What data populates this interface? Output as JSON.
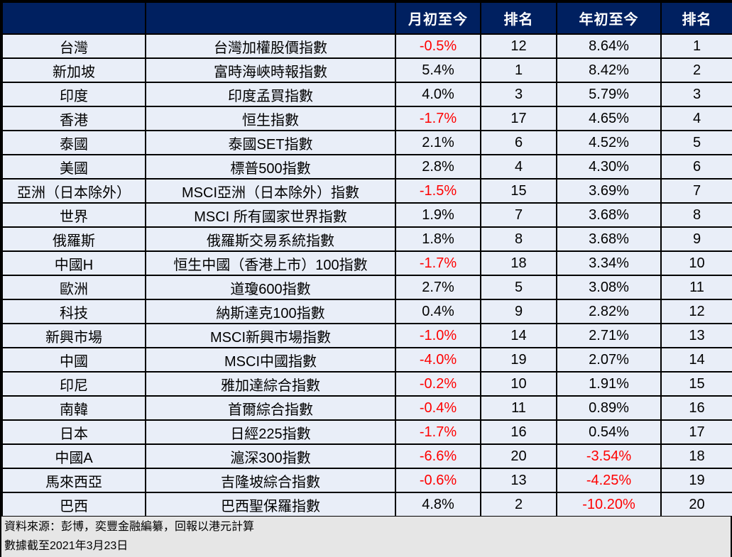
{
  "table": {
    "headers": [
      "",
      "",
      "月初至今",
      "排名",
      "年初至今",
      "排名"
    ],
    "rows": [
      {
        "market": "台灣",
        "index": "台灣加權股價指數",
        "mtd": "-0.5%",
        "mtd_rank": "12",
        "ytd": "8.64%",
        "ytd_rank": "1"
      },
      {
        "market": "新加坡",
        "index": "富時海峽時報指數",
        "mtd": "5.4%",
        "mtd_rank": "1",
        "ytd": "8.42%",
        "ytd_rank": "2"
      },
      {
        "market": "印度",
        "index": "印度孟買指數",
        "mtd": "4.0%",
        "mtd_rank": "3",
        "ytd": "5.79%",
        "ytd_rank": "3"
      },
      {
        "market": "香港",
        "index": "恒生指數",
        "mtd": "-1.7%",
        "mtd_rank": "17",
        "ytd": "4.65%",
        "ytd_rank": "4"
      },
      {
        "market": "泰國",
        "index": "泰國SET指數",
        "mtd": "2.1%",
        "mtd_rank": "6",
        "ytd": "4.52%",
        "ytd_rank": "5"
      },
      {
        "market": "美國",
        "index": "標普500指數",
        "mtd": "2.8%",
        "mtd_rank": "4",
        "ytd": "4.30%",
        "ytd_rank": "6"
      },
      {
        "market": "亞洲（日本除外）",
        "index": "MSCI亞洲（日本除外）指數",
        "mtd": "-1.5%",
        "mtd_rank": "15",
        "ytd": "3.69%",
        "ytd_rank": "7"
      },
      {
        "market": "世界",
        "index": "MSCI 所有國家世界指數",
        "mtd": "1.9%",
        "mtd_rank": "7",
        "ytd": "3.68%",
        "ytd_rank": "8"
      },
      {
        "market": "俄羅斯",
        "index": "俄羅斯交易系統指數",
        "mtd": "1.8%",
        "mtd_rank": "8",
        "ytd": "3.68%",
        "ytd_rank": "9"
      },
      {
        "market": "中國H",
        "index": "恒生中國（香港上市）100指數",
        "mtd": "-1.7%",
        "mtd_rank": "18",
        "ytd": "3.34%",
        "ytd_rank": "10"
      },
      {
        "market": "歐洲",
        "index": "道瓊600指數",
        "mtd": "2.7%",
        "mtd_rank": "5",
        "ytd": "3.08%",
        "ytd_rank": "11"
      },
      {
        "market": "科技",
        "index": "納斯達克100指數",
        "mtd": "0.4%",
        "mtd_rank": "9",
        "ytd": "2.82%",
        "ytd_rank": "12"
      },
      {
        "market": "新興市場",
        "index": "MSCI新興市場指數",
        "mtd": "-1.0%",
        "mtd_rank": "14",
        "ytd": "2.71%",
        "ytd_rank": "13"
      },
      {
        "market": "中國",
        "index": "MSCI中國指數",
        "mtd": "-4.0%",
        "mtd_rank": "19",
        "ytd": "2.07%",
        "ytd_rank": "14"
      },
      {
        "market": "印尼",
        "index": "雅加達綜合指數",
        "mtd": "-0.2%",
        "mtd_rank": "10",
        "ytd": "1.91%",
        "ytd_rank": "15"
      },
      {
        "market": "南韓",
        "index": "首爾綜合指數",
        "mtd": "-0.4%",
        "mtd_rank": "11",
        "ytd": "0.89%",
        "ytd_rank": "16"
      },
      {
        "market": "日本",
        "index": "日經225指數",
        "mtd": "-1.7%",
        "mtd_rank": "16",
        "ytd": "0.54%",
        "ytd_rank": "17"
      },
      {
        "market": "中國A",
        "index": "滬深300指數",
        "mtd": "-6.6%",
        "mtd_rank": "20",
        "ytd": "-3.54%",
        "ytd_rank": "18"
      },
      {
        "market": "馬來西亞",
        "index": "吉隆坡綜合指數",
        "mtd": "-0.6%",
        "mtd_rank": "13",
        "ytd": "-4.25%",
        "ytd_rank": "19"
      },
      {
        "market": "巴西",
        "index": "巴西聖保羅指數",
        "mtd": "4.8%",
        "mtd_rank": "2",
        "ytd": "-10.20%",
        "ytd_rank": "20"
      }
    ]
  },
  "footer": {
    "source": "資料來源：彭博，奕豐金融編纂，回報以港元計算",
    "as_of": "數據截至2021年3月23日"
  },
  "colors": {
    "header_bg": "#002060",
    "row_bg": "#e9eef8",
    "negative": "#ff0000",
    "footer_bg": "#e6e6e6"
  }
}
